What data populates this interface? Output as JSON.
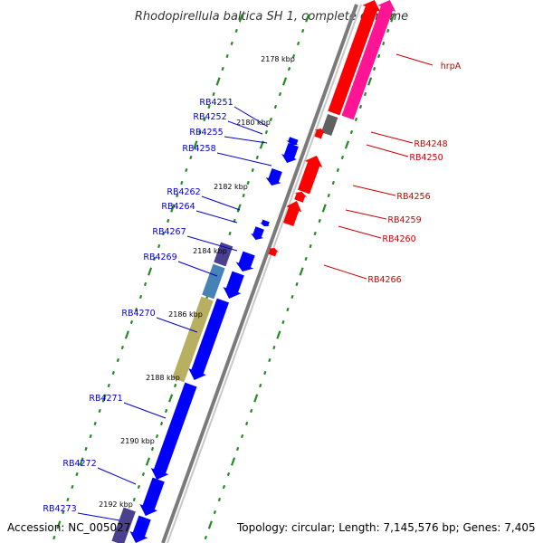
{
  "title": "Rhodopirellula baltica SH 1, complete genome",
  "footer": {
    "accession": "Accession: NC_005027",
    "topology": "Topology: circular; Length: 7,145,576 bp; Genes: 7,405"
  },
  "colors": {
    "forward_strand": "#0000ff",
    "reverse_strand": "#ff0000",
    "reverse_alt": "#ff1493",
    "backbone": "#8c8c8c",
    "tick_marks": "#228b22",
    "forward_label": "#0000cc",
    "reverse_label": "#cc0000",
    "feature_purple": "#4b3f8f",
    "feature_steel": "#4682b4",
    "feature_khaki": "#b8b060",
    "feature_gray": "#606060"
  },
  "kbp_ticks": [
    "2178 kbp",
    "2180 kbp",
    "2182 kbp",
    "2184 kbp",
    "2186 kbp",
    "2188 kbp",
    "2190 kbp",
    "2192 kbp"
  ],
  "forward_genes": [
    "RB4251",
    "RB4252",
    "RB4255",
    "RB4258",
    "RB4262",
    "RB4264",
    "RB4267",
    "RB4269",
    "RB4270",
    "RB4271",
    "RB4272",
    "RB4273"
  ],
  "reverse_genes": [
    "hrpA",
    "RB4248",
    "RB4250",
    "RB4256",
    "RB4259",
    "RB4260",
    "RB4266"
  ]
}
